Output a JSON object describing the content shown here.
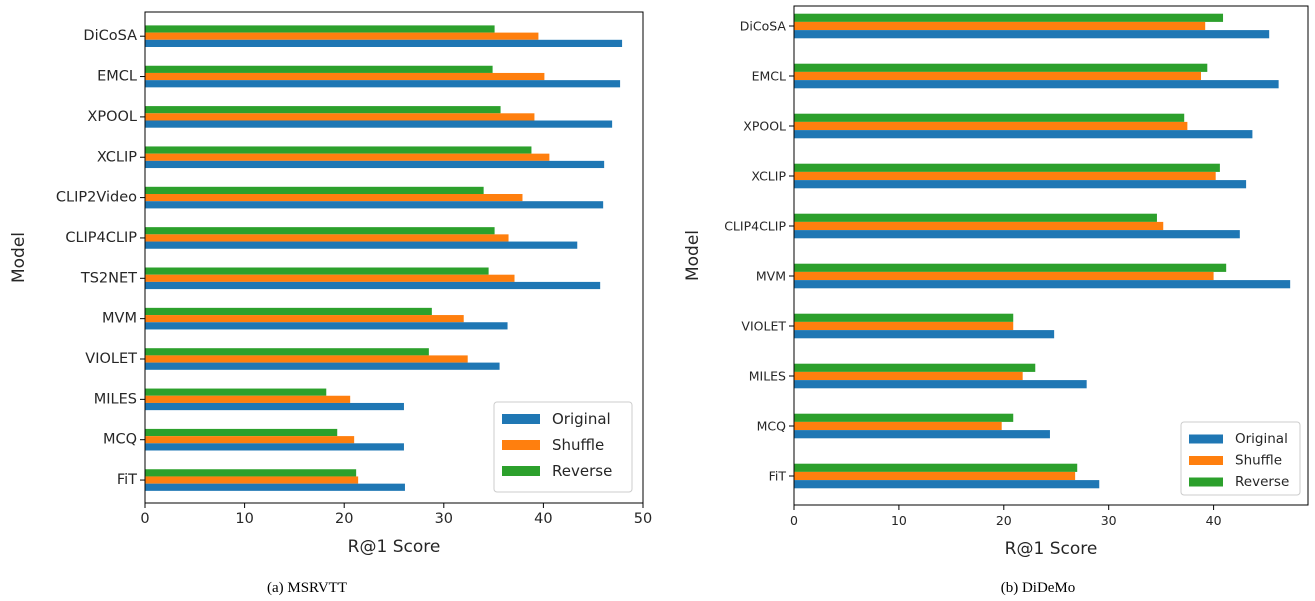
{
  "colors": {
    "Original": "#1f77b4",
    "Shuffle": "#ff7f0e",
    "Reverse": "#2ca02c"
  },
  "chart_data": [
    {
      "type": "bar",
      "orientation": "horizontal",
      "caption": "(a) MSRVTT",
      "xlabel": "R@1 Score",
      "ylabel": "Model",
      "xlim": [
        0,
        50
      ],
      "xticks": [
        0,
        10,
        20,
        30,
        40,
        50
      ],
      "legend_position": "lower-right",
      "categories": [
        "DiCoSA",
        "EMCL",
        "XPOOL",
        "XCLIP",
        "CLIP2Video",
        "CLIP4CLIP",
        "TS2NET",
        "MVM",
        "VIOLET",
        "MILES",
        "MCQ",
        "FiT"
      ],
      "series": [
        {
          "name": "Original",
          "values": [
            47.9,
            47.7,
            46.9,
            46.1,
            46.0,
            43.4,
            45.7,
            36.4,
            35.6,
            26.0,
            26.0,
            26.1
          ]
        },
        {
          "name": "Shuffle",
          "values": [
            39.5,
            40.1,
            39.1,
            40.6,
            37.9,
            36.5,
            37.1,
            32.0,
            32.4,
            20.6,
            21.0,
            21.4
          ]
        },
        {
          "name": "Reverse",
          "values": [
            35.1,
            34.9,
            35.7,
            38.8,
            34.0,
            35.1,
            34.5,
            28.8,
            28.5,
            18.2,
            19.3,
            21.2
          ]
        }
      ]
    },
    {
      "type": "bar",
      "orientation": "horizontal",
      "caption": "(b) DiDeMo",
      "xlabel": "R@1 Score",
      "ylabel": "Model",
      "xlim": [
        0,
        49
      ],
      "xticks": [
        0,
        10,
        20,
        30,
        40
      ],
      "legend_position": "lower-right",
      "categories": [
        "DiCoSA",
        "EMCL",
        "XPOOL",
        "XCLIP",
        "CLIP4CLIP",
        "MVM",
        "VIOLET",
        "MILES",
        "MCQ",
        "FiT"
      ],
      "series": [
        {
          "name": "Original",
          "values": [
            45.3,
            46.2,
            43.7,
            43.1,
            42.5,
            47.3,
            24.8,
            27.9,
            24.4,
            29.1
          ]
        },
        {
          "name": "Shuffle",
          "values": [
            39.2,
            38.8,
            37.5,
            40.2,
            35.2,
            40.0,
            20.9,
            21.8,
            19.8,
            26.8
          ]
        },
        {
          "name": "Reverse",
          "values": [
            40.9,
            39.4,
            37.2,
            40.6,
            34.6,
            41.2,
            20.9,
            23.0,
            20.9,
            27.0
          ]
        }
      ]
    }
  ]
}
